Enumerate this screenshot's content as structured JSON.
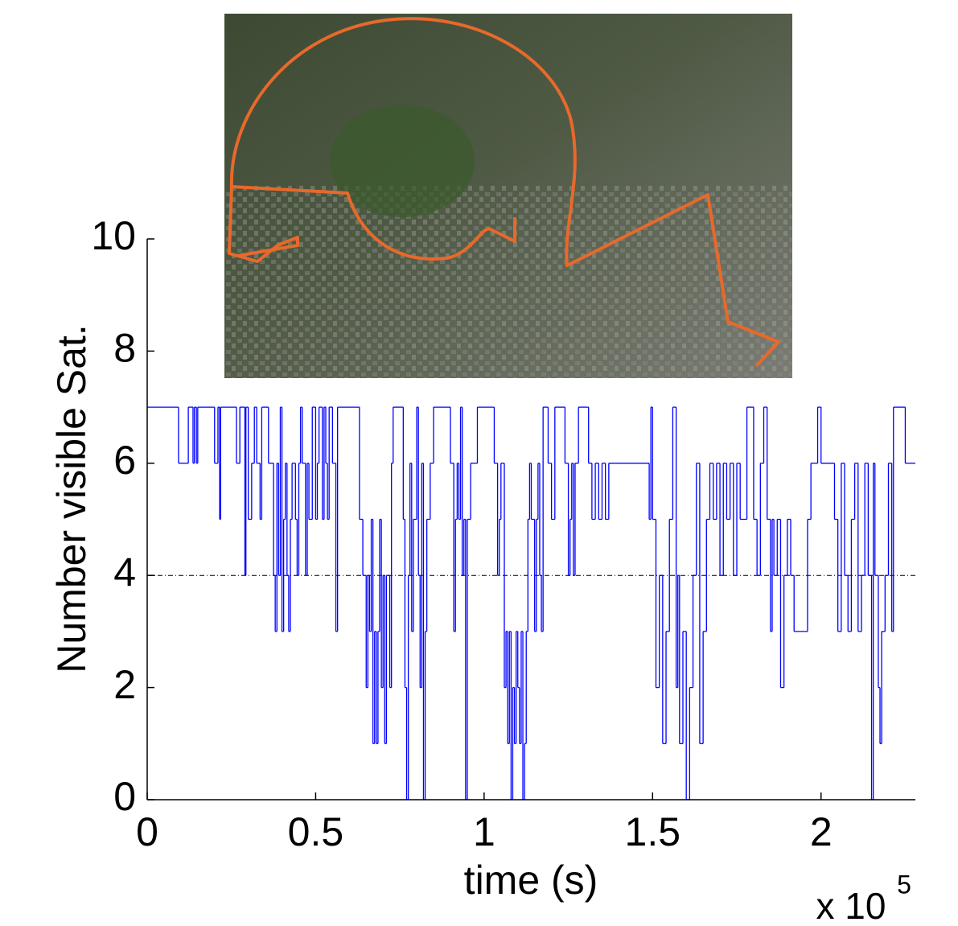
{
  "chart_data": {
    "type": "step",
    "ylabel": "Number visible Sat.",
    "xlabel": "time (s)",
    "x_multiplier": "x 10",
    "x_multiplier_exponent": "5",
    "xlim": [
      0,
      2.28
    ],
    "xticks": [
      0,
      0.5,
      1,
      1.5,
      2
    ],
    "ylim": [
      0,
      10
    ],
    "yticks": [
      0,
      2,
      4,
      6,
      8,
      10
    ],
    "reference_line": 4,
    "color": "#0000ff",
    "x": [
      0.0,
      0.093,
      0.122,
      0.136,
      0.14,
      0.146,
      0.15,
      0.2,
      0.21,
      0.215,
      0.218,
      0.265,
      0.275,
      0.29,
      0.293,
      0.3,
      0.31,
      0.318,
      0.325,
      0.335,
      0.34,
      0.36,
      0.375,
      0.38,
      0.385,
      0.39,
      0.395,
      0.4,
      0.405,
      0.41,
      0.415,
      0.42,
      0.425,
      0.43,
      0.44,
      0.445,
      0.45,
      0.455,
      0.46,
      0.47,
      0.475,
      0.48,
      0.49,
      0.5,
      0.505,
      0.51,
      0.52,
      0.525,
      0.53,
      0.535,
      0.54,
      0.55,
      0.56,
      0.565,
      0.63,
      0.64,
      0.65,
      0.655,
      0.66,
      0.665,
      0.67,
      0.675,
      0.68,
      0.685,
      0.69,
      0.695,
      0.7,
      0.705,
      0.71,
      0.72,
      0.725,
      0.73,
      0.76,
      0.765,
      0.77,
      0.775,
      0.78,
      0.785,
      0.79,
      0.8,
      0.805,
      0.81,
      0.815,
      0.82,
      0.825,
      0.83,
      0.84,
      0.85,
      0.9,
      0.91,
      0.915,
      0.92,
      0.925,
      0.93,
      0.935,
      0.94,
      0.945,
      0.95,
      0.96,
      0.98,
      1.03,
      1.04,
      1.045,
      1.05,
      1.06,
      1.065,
      1.07,
      1.075,
      1.08,
      1.085,
      1.09,
      1.095,
      1.1,
      1.105,
      1.11,
      1.115,
      1.12,
      1.125,
      1.13,
      1.135,
      1.14,
      1.15,
      1.155,
      1.16,
      1.165,
      1.17,
      1.175,
      1.19,
      1.2,
      1.21,
      1.24,
      1.25,
      1.255,
      1.26,
      1.265,
      1.27,
      1.28,
      1.31,
      1.32,
      1.33,
      1.34,
      1.35,
      1.36,
      1.37,
      1.49,
      1.495,
      1.5,
      1.51,
      1.52,
      1.53,
      1.54,
      1.55,
      1.56,
      1.57,
      1.575,
      1.58,
      1.59,
      1.6,
      1.61,
      1.62,
      1.63,
      1.64,
      1.65,
      1.66,
      1.67,
      1.68,
      1.69,
      1.7,
      1.71,
      1.72,
      1.73,
      1.74,
      1.75,
      1.76,
      1.78,
      1.8,
      1.81,
      1.82,
      1.83,
      1.84,
      1.85,
      1.855,
      1.86,
      1.87,
      1.88,
      1.89,
      1.9,
      1.91,
      1.92,
      1.96,
      1.97,
      1.99,
      2.0,
      2.04,
      2.05,
      2.06,
      2.07,
      2.08,
      2.09,
      2.1,
      2.11,
      2.12,
      2.13,
      2.14,
      2.15,
      2.155,
      2.16,
      2.17,
      2.175,
      2.18,
      2.19,
      2.2,
      2.21,
      2.215,
      2.25,
      2.28
    ],
    "values": [
      7,
      6,
      7,
      6,
      7,
      6,
      7,
      6,
      7,
      5,
      7,
      6,
      7,
      4,
      7,
      5,
      6,
      7,
      6,
      5,
      7,
      6,
      4,
      3,
      6,
      4,
      7,
      3,
      5,
      6,
      4,
      3,
      5,
      6,
      5,
      4,
      6,
      7,
      6,
      4,
      6,
      5,
      7,
      5,
      6,
      7,
      5,
      7,
      6,
      5,
      7,
      6,
      3,
      7,
      5,
      4,
      2,
      4,
      3,
      5,
      1,
      3,
      1,
      3,
      5,
      2,
      4,
      1,
      4,
      2,
      6,
      7,
      5,
      2,
      0,
      4,
      6,
      3,
      5,
      7,
      4,
      2,
      6,
      0,
      3,
      5,
      6,
      7,
      6,
      3,
      5,
      6,
      5,
      7,
      4,
      5,
      0,
      5,
      6,
      7,
      6,
      4,
      5,
      6,
      2,
      3,
      1,
      3,
      0,
      2,
      1,
      3,
      2,
      1,
      3,
      0,
      1,
      3,
      5,
      6,
      5,
      3,
      5,
      6,
      4,
      3,
      7,
      6,
      5,
      7,
      6,
      4,
      5,
      6,
      4,
      6,
      7,
      6,
      5,
      6,
      5,
      6,
      5,
      6,
      5,
      7,
      5,
      2,
      4,
      1,
      3,
      5,
      7,
      2,
      4,
      1,
      3,
      0,
      2,
      4,
      6,
      1,
      3,
      5,
      6,
      5,
      6,
      4,
      6,
      5,
      6,
      4,
      6,
      5,
      7,
      5,
      4,
      6,
      7,
      5,
      3,
      5,
      4,
      5,
      2,
      4,
      5,
      4,
      3,
      5,
      6,
      7,
      6,
      5,
      3,
      6,
      4,
      3,
      5,
      6,
      3,
      4,
      6,
      4,
      0,
      6,
      4,
      2,
      1,
      3,
      4,
      6,
      3,
      7,
      6,
      6
    ]
  }
}
